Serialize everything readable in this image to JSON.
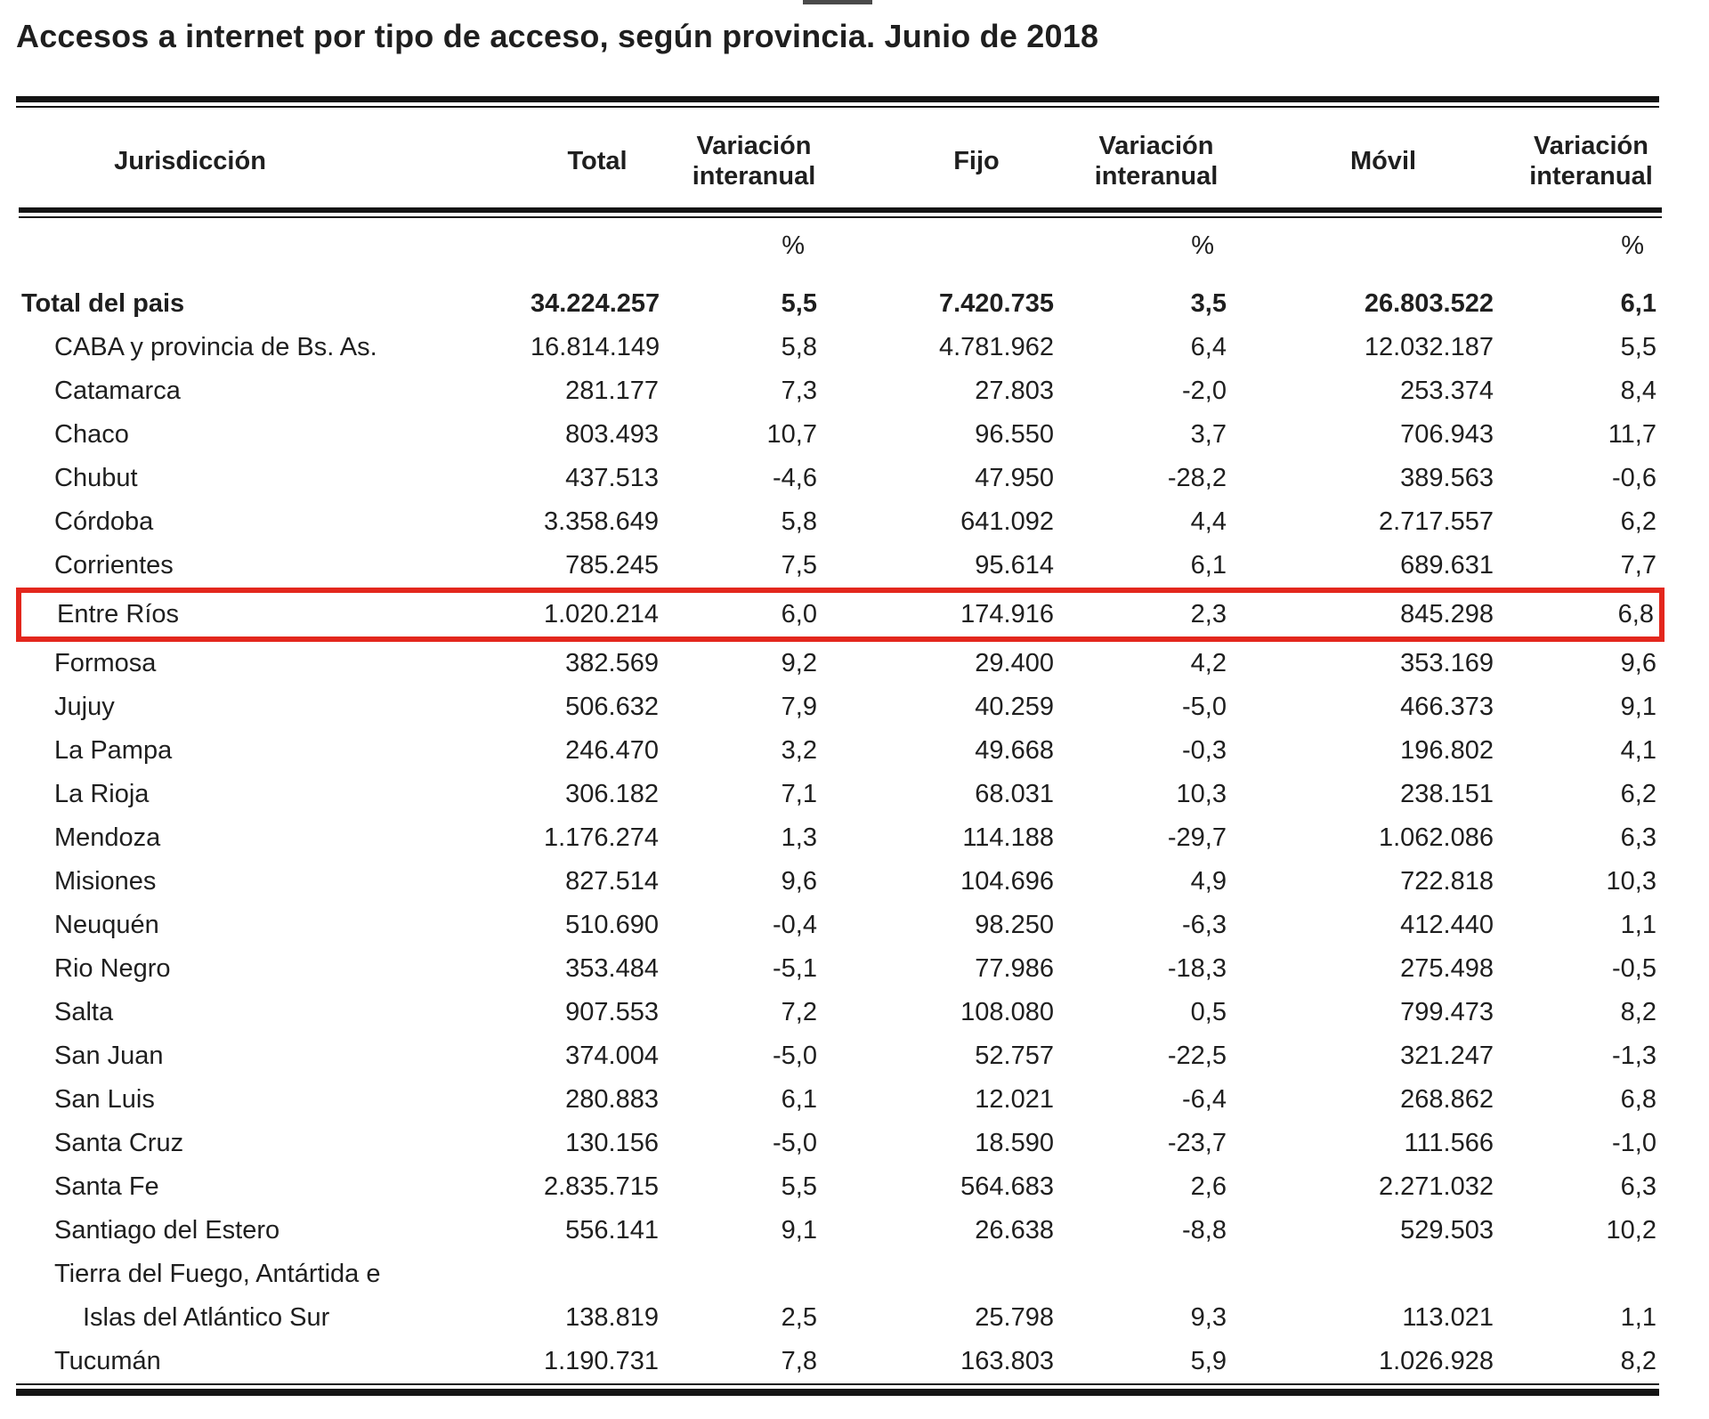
{
  "title": "Accesos a internet por tipo de acceso, según provincia. Junio de 2018",
  "table": {
    "columns": [
      "Jurisdicción",
      "Total",
      "Variación interanual",
      "Fijo",
      "Variación interanual",
      "Móvil",
      "Variación interanual"
    ],
    "percent_symbol": "%",
    "highlight_color": "#e3271d",
    "highlighted_row": "Entre Ríos",
    "rows": [
      {
        "name": "Total del pais",
        "indent": false,
        "bold": true,
        "highlighted": false,
        "values": [
          "34.224.257",
          "5,5",
          "7.420.735",
          "3,5",
          "26.803.522",
          "6,1"
        ]
      },
      {
        "name": "CABA y provincia de Bs. As.",
        "indent": true,
        "bold": false,
        "highlighted": false,
        "values": [
          "16.814.149",
          "5,8",
          "4.781.962",
          "6,4",
          "12.032.187",
          "5,5"
        ]
      },
      {
        "name": "Catamarca",
        "indent": true,
        "bold": false,
        "highlighted": false,
        "values": [
          "281.177",
          "7,3",
          "27.803",
          "-2,0",
          "253.374",
          "8,4"
        ]
      },
      {
        "name": "Chaco",
        "indent": true,
        "bold": false,
        "highlighted": false,
        "values": [
          "803.493",
          "10,7",
          "96.550",
          "3,7",
          "706.943",
          "11,7"
        ]
      },
      {
        "name": "Chubut",
        "indent": true,
        "bold": false,
        "highlighted": false,
        "values": [
          "437.513",
          "-4,6",
          "47.950",
          "-28,2",
          "389.563",
          "-0,6"
        ]
      },
      {
        "name": "Córdoba",
        "indent": true,
        "bold": false,
        "highlighted": false,
        "values": [
          "3.358.649",
          "5,8",
          "641.092",
          "4,4",
          "2.717.557",
          "6,2"
        ]
      },
      {
        "name": "Corrientes",
        "indent": true,
        "bold": false,
        "highlighted": false,
        "values": [
          "785.245",
          "7,5",
          "95.614",
          "6,1",
          "689.631",
          "7,7"
        ]
      },
      {
        "name": "Entre Ríos",
        "indent": true,
        "bold": false,
        "highlighted": true,
        "values": [
          "1.020.214",
          "6,0",
          "174.916",
          "2,3",
          "845.298",
          "6,8"
        ]
      },
      {
        "name": "Formosa",
        "indent": true,
        "bold": false,
        "highlighted": false,
        "values": [
          "382.569",
          "9,2",
          "29.400",
          "4,2",
          "353.169",
          "9,6"
        ]
      },
      {
        "name": "Jujuy",
        "indent": true,
        "bold": false,
        "highlighted": false,
        "values": [
          "506.632",
          "7,9",
          "40.259",
          "-5,0",
          "466.373",
          "9,1"
        ]
      },
      {
        "name": "La Pampa",
        "indent": true,
        "bold": false,
        "highlighted": false,
        "values": [
          "246.470",
          "3,2",
          "49.668",
          "-0,3",
          "196.802",
          "4,1"
        ]
      },
      {
        "name": "La Rioja",
        "indent": true,
        "bold": false,
        "highlighted": false,
        "values": [
          "306.182",
          "7,1",
          "68.031",
          "10,3",
          "238.151",
          "6,2"
        ]
      },
      {
        "name": "Mendoza",
        "indent": true,
        "bold": false,
        "highlighted": false,
        "values": [
          "1.176.274",
          "1,3",
          "114.188",
          "-29,7",
          "1.062.086",
          "6,3"
        ]
      },
      {
        "name": "Misiones",
        "indent": true,
        "bold": false,
        "highlighted": false,
        "values": [
          "827.514",
          "9,6",
          "104.696",
          "4,9",
          "722.818",
          "10,3"
        ]
      },
      {
        "name": "Neuquén",
        "indent": true,
        "bold": false,
        "highlighted": false,
        "values": [
          "510.690",
          "-0,4",
          "98.250",
          "-6,3",
          "412.440",
          "1,1"
        ]
      },
      {
        "name": "Rio Negro",
        "indent": true,
        "bold": false,
        "highlighted": false,
        "values": [
          "353.484",
          "-5,1",
          "77.986",
          "-18,3",
          "275.498",
          "-0,5"
        ]
      },
      {
        "name": "Salta",
        "indent": true,
        "bold": false,
        "highlighted": false,
        "values": [
          "907.553",
          "7,2",
          "108.080",
          "0,5",
          "799.473",
          "8,2"
        ]
      },
      {
        "name": "San Juan",
        "indent": true,
        "bold": false,
        "highlighted": false,
        "values": [
          "374.004",
          "-5,0",
          "52.757",
          "-22,5",
          "321.247",
          "-1,3"
        ]
      },
      {
        "name": "San Luis",
        "indent": true,
        "bold": false,
        "highlighted": false,
        "values": [
          "280.883",
          "6,1",
          "12.021",
          "-6,4",
          "268.862",
          "6,8"
        ]
      },
      {
        "name": "Santa Cruz",
        "indent": true,
        "bold": false,
        "highlighted": false,
        "values": [
          "130.156",
          "-5,0",
          "18.590",
          "-23,7",
          "111.566",
          "-1,0"
        ]
      },
      {
        "name": "Santa Fe",
        "indent": true,
        "bold": false,
        "highlighted": false,
        "values": [
          "2.835.715",
          "5,5",
          "564.683",
          "2,6",
          "2.271.032",
          "6,3"
        ]
      },
      {
        "name": "Santiago del Estero",
        "indent": true,
        "bold": false,
        "highlighted": false,
        "values": [
          "556.141",
          "9,1",
          "26.638",
          "-8,8",
          "529.503",
          "10,2"
        ]
      },
      {
        "name": "Tierra del Fuego, Antártida e",
        "name_line2": "Islas del Atlántico Sur",
        "indent": true,
        "bold": false,
        "highlighted": false,
        "values": [
          "138.819",
          "2,5",
          "25.798",
          "9,3",
          "113.021",
          "1,1"
        ]
      },
      {
        "name": "Tucumán",
        "indent": true,
        "bold": false,
        "highlighted": false,
        "values": [
          "1.190.731",
          "7,8",
          "163.803",
          "5,9",
          "1.026.928",
          "8,2"
        ]
      }
    ]
  }
}
